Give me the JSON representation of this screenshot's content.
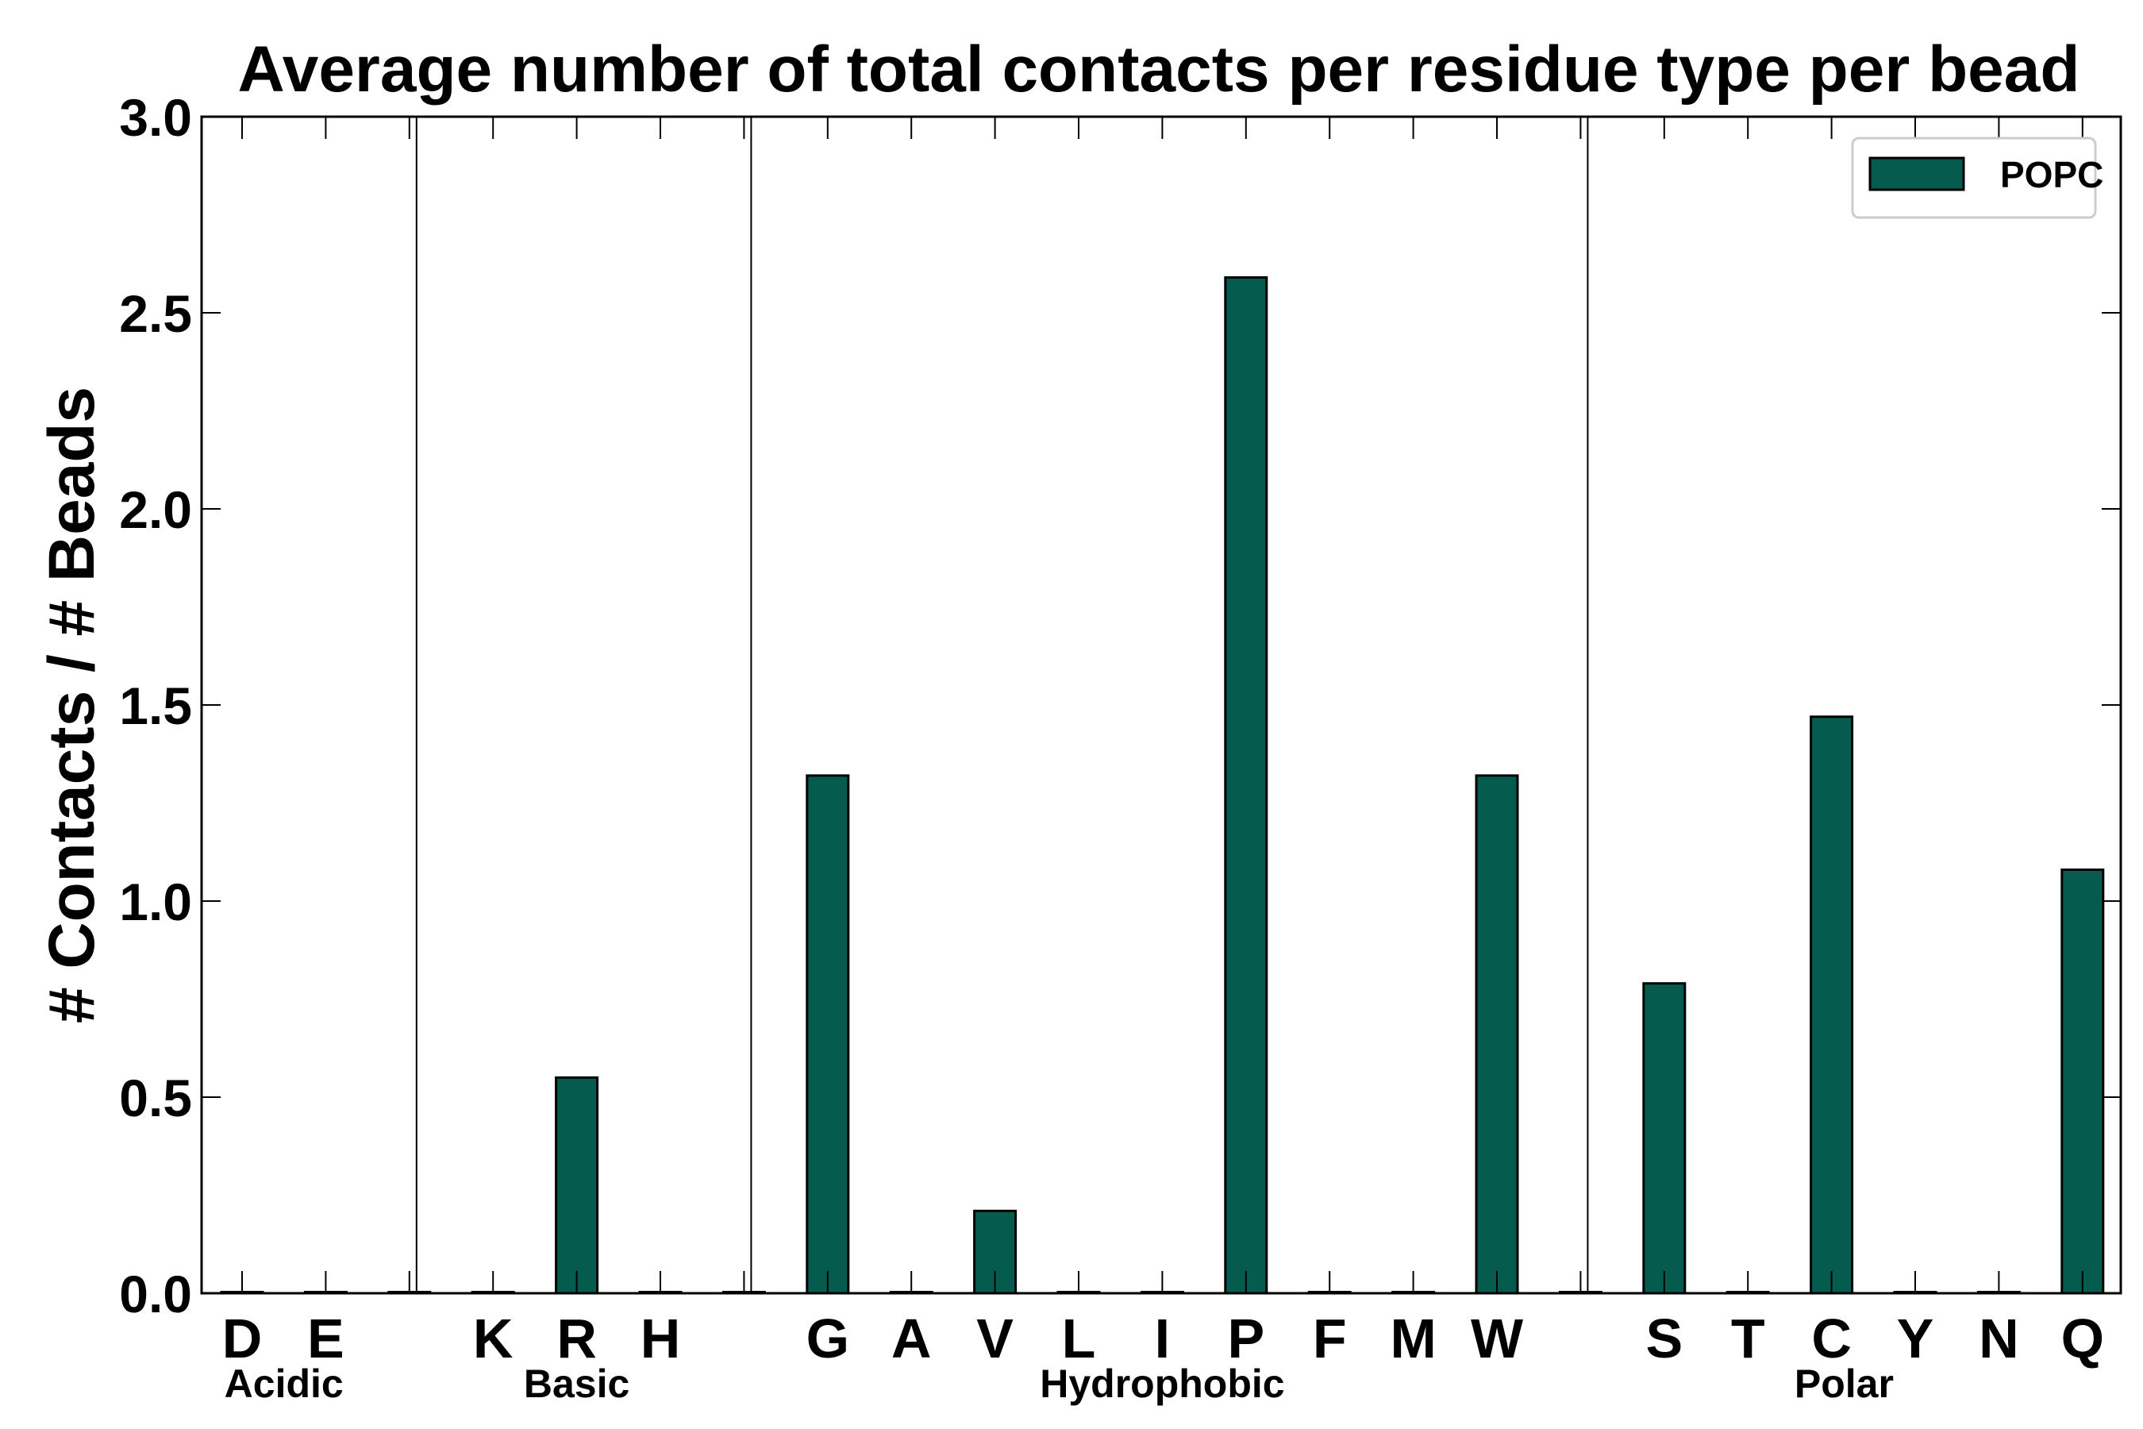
{
  "chart_data": {
    "type": "bar",
    "title": "Average number of total contacts per residue type per bead",
    "ylabel": "# Contacts / # Beads",
    "xlabel": "",
    "ylim": [
      0,
      3.0
    ],
    "yticks": [
      "0.0",
      "0.5",
      "1.0",
      "1.5",
      "2.0",
      "2.5",
      "3.0"
    ],
    "grid": false,
    "legend_position": "top-right",
    "bar_color": "#055c4e",
    "categories": [
      "D",
      "E",
      "",
      "K",
      "R",
      "H",
      "",
      "G",
      "A",
      "V",
      "L",
      "I",
      "P",
      "F",
      "M",
      "W",
      "",
      "S",
      "T",
      "C",
      "Y",
      "N",
      "Q"
    ],
    "series": [
      {
        "name": "POPC",
        "values": [
          0,
          0,
          0,
          0,
          0.55,
          0,
          0,
          1.32,
          0,
          0.21,
          0,
          0,
          2.59,
          0,
          0,
          1.32,
          0,
          0.79,
          0,
          1.47,
          0,
          0,
          1.08
        ]
      }
    ],
    "groups": [
      {
        "label": "Acidic"
      },
      {
        "label": "Basic"
      },
      {
        "label": "Hydrophobic"
      },
      {
        "label": "Polar"
      }
    ]
  }
}
